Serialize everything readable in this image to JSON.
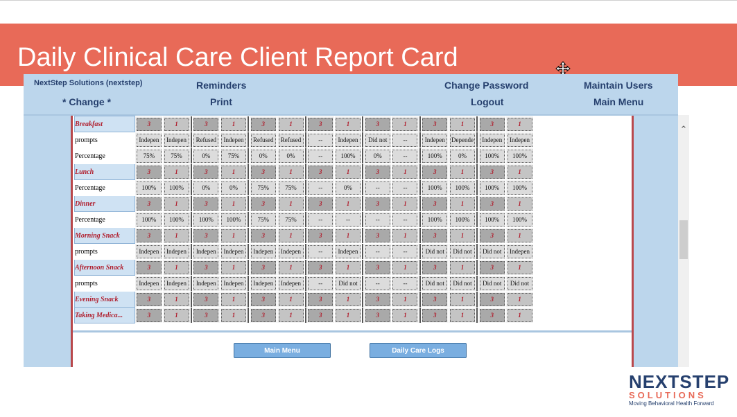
{
  "slide": {
    "title": "Daily Clinical Care Client Report Card"
  },
  "nav": {
    "account": "NextStep Solutions (nextstep)",
    "change": "* Change *",
    "reminders": "Reminders",
    "print": "Print",
    "change_password": "Change Password",
    "logout": "Logout",
    "maintain_users": "Maintain Users",
    "main_menu": "Main Menu"
  },
  "grid": {
    "rows": [
      {
        "label": "Breakfast",
        "type": "meal",
        "cells": [
          "3",
          "1",
          "3",
          "1",
          "3",
          "1",
          "3",
          "1",
          "3",
          "1",
          "3",
          "1",
          "3",
          "1"
        ]
      },
      {
        "label": "prompts",
        "type": "data",
        "cells": [
          "Indepen",
          "Indepen",
          "Refused",
          "Indepen",
          "Refused",
          "Refused",
          "--",
          "Indepen",
          "Did not",
          "--",
          "Indepen",
          "Depende",
          "Indepen",
          "Indepen"
        ]
      },
      {
        "label": "Percentage",
        "type": "data",
        "cells": [
          "75%",
          "75%",
          "0%",
          "75%",
          "0%",
          "0%",
          "--",
          "100%",
          "0%",
          "--",
          "100%",
          "0%",
          "100%",
          "100%"
        ]
      },
      {
        "label": "Lunch",
        "type": "meal",
        "cells": [
          "3",
          "1",
          "3",
          "1",
          "3",
          "1",
          "3",
          "1",
          "3",
          "1",
          "3",
          "1",
          "3",
          "1"
        ]
      },
      {
        "label": "Percentage",
        "type": "data",
        "cells": [
          "100%",
          "100%",
          "0%",
          "0%",
          "75%",
          "75%",
          "--",
          "0%",
          "--",
          "--",
          "100%",
          "100%",
          "100%",
          "100%"
        ]
      },
      {
        "label": "Dinner",
        "type": "meal",
        "cells": [
          "3",
          "1",
          "3",
          "1",
          "3",
          "1",
          "3",
          "1",
          "3",
          "1",
          "3",
          "1",
          "3",
          "1"
        ]
      },
      {
        "label": "Percentage",
        "type": "data",
        "cells": [
          "100%",
          "100%",
          "100%",
          "100%",
          "75%",
          "75%",
          "--",
          "--",
          "--",
          "--",
          "100%",
          "100%",
          "100%",
          "100%"
        ]
      },
      {
        "label": "Morning Snack",
        "type": "meal",
        "cells": [
          "3",
          "1",
          "3",
          "1",
          "3",
          "1",
          "3",
          "1",
          "3",
          "1",
          "3",
          "1",
          "3",
          "1"
        ]
      },
      {
        "label": "prompts",
        "type": "data",
        "cells": [
          "Indepen",
          "Indepen",
          "Indepen",
          "Indepen",
          "Indepen",
          "Indepen",
          "--",
          "Indepen",
          "--",
          "--",
          "Did not",
          "Did not",
          "Did not",
          "Indepen"
        ]
      },
      {
        "label": "Afternoon Snack",
        "type": "meal",
        "cells": [
          "3",
          "1",
          "3",
          "1",
          "3",
          "1",
          "3",
          "1",
          "3",
          "1",
          "3",
          "1",
          "3",
          "1"
        ]
      },
      {
        "label": "prompts",
        "type": "data",
        "cells": [
          "Indepen",
          "Indepen",
          "Indepen",
          "Indepen",
          "Indepen",
          "Indepen",
          "--",
          "Did not",
          "--",
          "--",
          "Did not",
          "Did not",
          "Did not",
          "Did not"
        ]
      },
      {
        "label": "Evening Snack",
        "type": "meal",
        "cells": [
          "3",
          "1",
          "3",
          "1",
          "3",
          "1",
          "3",
          "1",
          "3",
          "1",
          "3",
          "1",
          "3",
          "1"
        ]
      },
      {
        "label": "Taking Medica...",
        "type": "meal",
        "cells": [
          "3",
          "1",
          "3",
          "1",
          "3",
          "1",
          "3",
          "1",
          "3",
          "1",
          "3",
          "1",
          "3",
          "1"
        ]
      }
    ]
  },
  "buttons": {
    "main_menu": "Main Menu",
    "daily_care_logs": "Daily Care Logs"
  },
  "logo": {
    "main": "NEXTSTEP",
    "sub": "SOLUTIONS",
    "tagline": "Moving Behavioral Health Forward"
  },
  "colors": {
    "banner": "#e86a58",
    "nav_bg": "#bcd6ec",
    "nav_text": "#26406e",
    "meal_text": "#b01e2d"
  }
}
